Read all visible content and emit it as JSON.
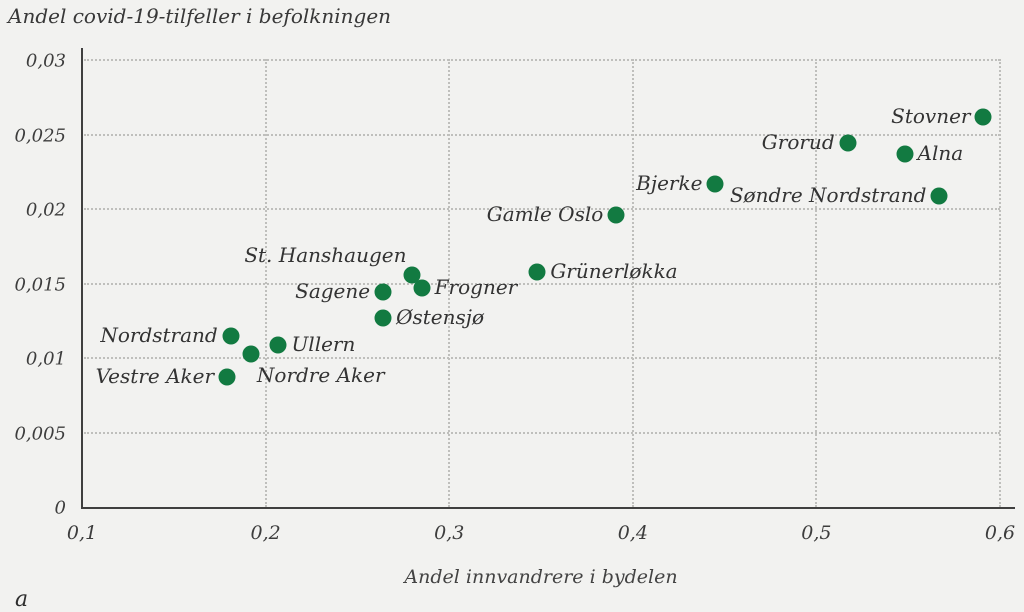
{
  "page": {
    "background": "#f2f2f0",
    "corner_letter": "a"
  },
  "chart_data": {
    "type": "scatter",
    "title": "Andel covid-19-tilfeller i befolkningen",
    "xlabel": "Andel innvandrere i bydelen",
    "ylabel": "Andel covid-19-tilfeller i befolkningen",
    "xlim": [
      0.1,
      0.6
    ],
    "ylim": [
      0,
      0.03
    ],
    "grid": true,
    "legend": "none",
    "point_color": "#127a41",
    "axis_color": "#3f3f3f",
    "grid_color": "#bfbfbc",
    "x_ticks": [
      {
        "value": 0.1,
        "label": "0,1"
      },
      {
        "value": 0.2,
        "label": "0,2"
      },
      {
        "value": 0.3,
        "label": "0,3"
      },
      {
        "value": 0.4,
        "label": "0,4"
      },
      {
        "value": 0.5,
        "label": "0,5"
      },
      {
        "value": 0.6,
        "label": "0,6"
      }
    ],
    "y_ticks": [
      {
        "value": 0,
        "label": "0"
      },
      {
        "value": 0.005,
        "label": "0,005"
      },
      {
        "value": 0.01,
        "label": "0,01"
      },
      {
        "value": 0.015,
        "label": "0,015"
      },
      {
        "value": 0.02,
        "label": "0,02"
      },
      {
        "value": 0.025,
        "label": "0,025"
      },
      {
        "value": 0.03,
        "label": "0,03"
      }
    ],
    "points": [
      {
        "label": "Vestre Aker",
        "x": 0.179,
        "y": 0.0087,
        "label_side": "left"
      },
      {
        "label": "Nordstrand",
        "x": 0.181,
        "y": 0.0115,
        "label_side": "left"
      },
      {
        "label": "Nordre Aker",
        "x": 0.192,
        "y": 0.0103,
        "label_side": "below-right"
      },
      {
        "label": "Ullern",
        "x": 0.207,
        "y": 0.0109,
        "label_side": "right"
      },
      {
        "label": "Sagene",
        "x": 0.264,
        "y": 0.0144,
        "label_side": "left"
      },
      {
        "label": "Østensjø",
        "x": 0.264,
        "y": 0.0127,
        "label_side": "right"
      },
      {
        "label": "St. Hanshaugen",
        "x": 0.28,
        "y": 0.0156,
        "label_side": "above-left"
      },
      {
        "label": "Frogner",
        "x": 0.285,
        "y": 0.0147,
        "label_side": "right"
      },
      {
        "label": "Grünerløkka",
        "x": 0.348,
        "y": 0.0158,
        "label_side": "right"
      },
      {
        "label": "Gamle Oslo",
        "x": 0.391,
        "y": 0.0196,
        "label_side": "left"
      },
      {
        "label": "Bjerke",
        "x": 0.445,
        "y": 0.0217,
        "label_side": "left"
      },
      {
        "label": "Grorud",
        "x": 0.517,
        "y": 0.0244,
        "label_side": "left"
      },
      {
        "label": "Alna",
        "x": 0.548,
        "y": 0.0237,
        "label_side": "right"
      },
      {
        "label": "Søndre Nordstrand",
        "x": 0.567,
        "y": 0.0209,
        "label_side": "left"
      },
      {
        "label": "Stovner",
        "x": 0.591,
        "y": 0.0262,
        "label_side": "left"
      }
    ]
  }
}
